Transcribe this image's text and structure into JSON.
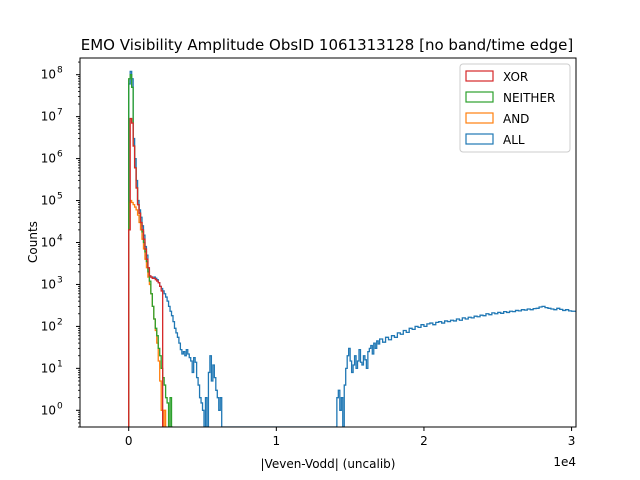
{
  "chart_data": {
    "type": "histogram",
    "title": "EMO Visibility Amplitude ObsID 1061313128 [no band/time edge]",
    "xlabel": "|Veven-Vodd| (uncalib)",
    "ylabel": "Counts",
    "x_offset_label": "1e4",
    "x_scale": "linear",
    "y_scale": "log",
    "xlim": [
      -3300,
      30300
    ],
    "ylim": [
      0.4,
      250000000
    ],
    "x_ticks": [
      {
        "value": 0,
        "label": "0"
      },
      {
        "value": 10000,
        "label": "1"
      },
      {
        "value": 20000,
        "label": "2"
      },
      {
        "value": 30000,
        "label": "3"
      }
    ],
    "y_ticks": [
      {
        "exp": 0,
        "base": "10",
        "sup": "0"
      },
      {
        "exp": 1,
        "base": "10",
        "sup": "1"
      },
      {
        "exp": 2,
        "base": "10",
        "sup": "2"
      },
      {
        "exp": 3,
        "base": "10",
        "sup": "3"
      },
      {
        "exp": 4,
        "base": "10",
        "sup": "4"
      },
      {
        "exp": 5,
        "base": "10",
        "sup": "5"
      },
      {
        "exp": 6,
        "base": "10",
        "sup": "6"
      },
      {
        "exp": 7,
        "base": "10",
        "sup": "7"
      },
      {
        "exp": 8,
        "base": "10",
        "sup": "8"
      }
    ],
    "legend_position": "top-right",
    "series": [
      {
        "name": "ALL",
        "color": "#1f77b4",
        "points": [
          [
            -20,
            0.4
          ],
          [
            0,
            0.4
          ],
          [
            0,
            60000000.0
          ],
          [
            100,
            120000000.0
          ],
          [
            200,
            80000000.0
          ],
          [
            300,
            3000000.0
          ],
          [
            400,
            1000000.0
          ],
          [
            500,
            300000.0
          ],
          [
            600,
            100000.0
          ],
          [
            700,
            60000.0
          ],
          [
            800,
            40000.0
          ],
          [
            900,
            25000.0
          ],
          [
            1000,
            15000.0
          ],
          [
            1100,
            8000
          ],
          [
            1200,
            5000
          ],
          [
            1300,
            2500
          ],
          [
            1400,
            1600
          ],
          [
            1500,
            1500
          ],
          [
            1600,
            1400
          ],
          [
            1700,
            1500
          ],
          [
            1800,
            1400
          ],
          [
            1900,
            1300
          ],
          [
            2000,
            1100
          ],
          [
            2100,
            900
          ],
          [
            2200,
            800
          ],
          [
            2300,
            700
          ],
          [
            2400,
            600
          ],
          [
            2500,
            500
          ],
          [
            2600,
            400
          ],
          [
            2700,
            300
          ],
          [
            2800,
            230
          ],
          [
            2900,
            180
          ],
          [
            3000,
            130
          ],
          [
            3100,
            90
          ],
          [
            3200,
            70
          ],
          [
            3300,
            55
          ],
          [
            3400,
            40
          ],
          [
            3500,
            28
          ],
          [
            3600,
            22
          ],
          [
            3700,
            25
          ],
          [
            3800,
            20
          ],
          [
            3900,
            28
          ],
          [
            4000,
            22
          ],
          [
            4100,
            18
          ],
          [
            4200,
            15
          ],
          [
            4300,
            8
          ],
          [
            4400,
            18
          ],
          [
            4500,
            14
          ],
          [
            4600,
            6
          ],
          [
            4700,
            4
          ],
          [
            4800,
            2
          ],
          [
            4900,
            1.5
          ],
          [
            5000,
            1
          ],
          [
            5100,
            0.4
          ],
          [
            5200,
            2
          ],
          [
            5300,
            0.4
          ],
          [
            5400,
            8
          ],
          [
            5500,
            20
          ],
          [
            5600,
            5
          ],
          [
            5700,
            12
          ],
          [
            5800,
            6
          ],
          [
            5900,
            3
          ],
          [
            6000,
            2
          ],
          [
            6100,
            1
          ],
          [
            6200,
            2
          ],
          [
            6300,
            0.4
          ],
          [
            14000,
            0.4
          ],
          [
            14100,
            2
          ],
          [
            14200,
            3
          ],
          [
            14300,
            1
          ],
          [
            14400,
            2
          ],
          [
            14500,
            0.4
          ],
          [
            14600,
            4
          ],
          [
            14700,
            10
          ],
          [
            14800,
            20
          ],
          [
            14900,
            30
          ],
          [
            15000,
            15
          ],
          [
            15100,
            8
          ],
          [
            15200,
            12
          ],
          [
            15300,
            20
          ],
          [
            15400,
            10
          ],
          [
            15500,
            15
          ],
          [
            15600,
            28
          ],
          [
            15700,
            14
          ],
          [
            15800,
            12
          ],
          [
            15900,
            20
          ],
          [
            16000,
            16
          ],
          [
            16100,
            10
          ],
          [
            16200,
            25
          ],
          [
            16300,
            30
          ],
          [
            16400,
            35
          ],
          [
            16500,
            22
          ],
          [
            16600,
            40
          ],
          [
            16700,
            30
          ],
          [
            16800,
            45
          ],
          [
            16900,
            38
          ],
          [
            17000,
            50
          ],
          [
            17200,
            42
          ],
          [
            17400,
            55
          ],
          [
            17600,
            48
          ],
          [
            17800,
            60
          ],
          [
            18000,
            55
          ],
          [
            18200,
            70
          ],
          [
            18400,
            65
          ],
          [
            18600,
            80
          ],
          [
            18800,
            72
          ],
          [
            19000,
            90
          ],
          [
            19200,
            85
          ],
          [
            19400,
            100
          ],
          [
            19600,
            95
          ],
          [
            19800,
            110
          ],
          [
            20000,
            100
          ],
          [
            20200,
            115
          ],
          [
            20400,
            120
          ],
          [
            20600,
            110
          ],
          [
            20800,
            125
          ],
          [
            21000,
            130
          ],
          [
            21200,
            120
          ],
          [
            21400,
            135
          ],
          [
            21600,
            130
          ],
          [
            21800,
            140
          ],
          [
            22000,
            135
          ],
          [
            22200,
            150
          ],
          [
            22400,
            140
          ],
          [
            22600,
            160
          ],
          [
            22800,
            150
          ],
          [
            23000,
            165
          ],
          [
            23200,
            160
          ],
          [
            23400,
            175
          ],
          [
            23600,
            170
          ],
          [
            23800,
            185
          ],
          [
            24000,
            180
          ],
          [
            24200,
            200
          ],
          [
            24400,
            190
          ],
          [
            24600,
            210
          ],
          [
            24800,
            200
          ],
          [
            25000,
            215
          ],
          [
            25200,
            205
          ],
          [
            25400,
            225
          ],
          [
            25600,
            215
          ],
          [
            25800,
            230
          ],
          [
            26000,
            225
          ],
          [
            26200,
            240
          ],
          [
            26400,
            235
          ],
          [
            26600,
            250
          ],
          [
            26800,
            245
          ],
          [
            27000,
            260
          ],
          [
            27200,
            250
          ],
          [
            27400,
            265
          ],
          [
            27600,
            270
          ],
          [
            27800,
            290
          ],
          [
            28000,
            300
          ],
          [
            28200,
            280
          ],
          [
            28400,
            270
          ],
          [
            28600,
            260
          ],
          [
            28800,
            250
          ],
          [
            29000,
            270
          ],
          [
            29200,
            255
          ],
          [
            29400,
            240
          ],
          [
            29600,
            250
          ],
          [
            29800,
            235
          ],
          [
            30000,
            230
          ],
          [
            30300,
            230
          ]
        ]
      },
      {
        "name": "AND",
        "color": "#ff7f0e",
        "points": [
          [
            -20,
            0.4
          ],
          [
            0,
            0.4
          ],
          [
            0,
            90000.0
          ],
          [
            100,
            100000.0
          ],
          [
            200,
            90000.0
          ],
          [
            300,
            80000.0
          ],
          [
            400,
            70000.0
          ],
          [
            500,
            60000.0
          ],
          [
            600,
            45000.0
          ],
          [
            700,
            30000.0
          ],
          [
            800,
            20000.0
          ],
          [
            900,
            12000.0
          ],
          [
            1000,
            7000
          ],
          [
            1100,
            4000
          ],
          [
            1200,
            2500
          ],
          [
            1300,
            1500
          ],
          [
            1400,
            1000
          ],
          [
            1500,
            600
          ],
          [
            1600,
            300
          ],
          [
            1700,
            150
          ],
          [
            1800,
            80
          ],
          [
            1900,
            40
          ],
          [
            2000,
            15
          ],
          [
            2100,
            5
          ],
          [
            2200,
            1
          ],
          [
            2300,
            0.4
          ],
          [
            2400,
            0.4
          ],
          [
            2400,
            1
          ],
          [
            2500,
            0.4
          ],
          [
            2600,
            0.4
          ]
        ]
      },
      {
        "name": "NEITHER",
        "color": "#2ca02c",
        "points": [
          [
            -20,
            0.4
          ],
          [
            0,
            0.4
          ],
          [
            0,
            80000000.0
          ],
          [
            100,
            100000000.0
          ],
          [
            200,
            50000000.0
          ],
          [
            300,
            2000000.0
          ],
          [
            400,
            600000.0
          ],
          [
            500,
            200000.0
          ],
          [
            600,
            80000.0
          ],
          [
            700,
            50000.0
          ],
          [
            800,
            30000.0
          ],
          [
            900,
            18000.0
          ],
          [
            1000,
            10000.0
          ],
          [
            1100,
            6000
          ],
          [
            1200,
            3500
          ],
          [
            1300,
            2000
          ],
          [
            1400,
            1200
          ],
          [
            1500,
            600
          ],
          [
            1600,
            300
          ],
          [
            1700,
            150
          ],
          [
            1800,
            90
          ],
          [
            1900,
            60
          ],
          [
            2000,
            30
          ],
          [
            2100,
            20
          ],
          [
            2200,
            10
          ],
          [
            2300,
            6
          ],
          [
            2400,
            4
          ],
          [
            2500,
            2
          ],
          [
            2600,
            1.5
          ],
          [
            2700,
            0.4
          ],
          [
            2800,
            2
          ],
          [
            2900,
            0.4
          ],
          [
            3000,
            0.4
          ]
        ]
      },
      {
        "name": "XOR",
        "color": "#d62728",
        "points": [
          [
            -20,
            0.4
          ],
          [
            0,
            0.4
          ],
          [
            0,
            20000.0
          ],
          [
            100,
            9000000.0
          ],
          [
            200,
            7000000.0
          ],
          [
            300,
            2000000.0
          ],
          [
            400,
            600000.0
          ],
          [
            500,
            200000.0
          ],
          [
            600,
            80000.0
          ],
          [
            700,
            50000.0
          ],
          [
            800,
            30000.0
          ],
          [
            900,
            20000.0
          ],
          [
            1000,
            12000.0
          ],
          [
            1100,
            7000
          ],
          [
            1200,
            4000
          ],
          [
            1300,
            2500
          ],
          [
            1400,
            1600
          ],
          [
            1500,
            1500
          ],
          [
            1600,
            1400
          ],
          [
            1700,
            1400
          ],
          [
            1800,
            1300
          ],
          [
            1900,
            1200
          ],
          [
            2000,
            1100
          ],
          [
            2100,
            900
          ],
          [
            2200,
            700
          ],
          [
            2300,
            0.4
          ]
        ]
      }
    ],
    "legend_order": [
      "XOR",
      "NEITHER",
      "AND",
      "ALL"
    ]
  }
}
